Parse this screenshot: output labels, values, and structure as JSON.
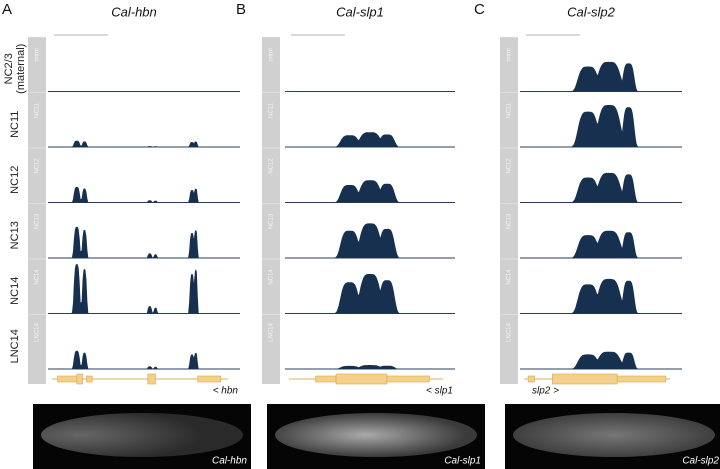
{
  "panels": [
    {
      "letter": "A",
      "title": "Cal-hbn",
      "gene_label": "< hbn",
      "image_label": "Cal-hbn"
    },
    {
      "letter": "B",
      "title": "Cal-slp1",
      "gene_label": "< slp1",
      "image_label": "Cal-slp1"
    },
    {
      "letter": "C",
      "title": "Cal-slp2",
      "gene_label": "slp2 >",
      "image_label": "Cal-slp2"
    }
  ],
  "rows": [
    {
      "label": "NC2/3",
      "sublabel": "(maternal)",
      "track_label": "mtrnl"
    },
    {
      "label": "NC11",
      "track_label": "NC11"
    },
    {
      "label": "NC12",
      "track_label": "NC12"
    },
    {
      "label": "NC13",
      "track_label": "NC13"
    },
    {
      "label": "NC14",
      "track_label": "NC14"
    },
    {
      "label": "LNC14",
      "track_label": "LNC14"
    }
  ]
}
